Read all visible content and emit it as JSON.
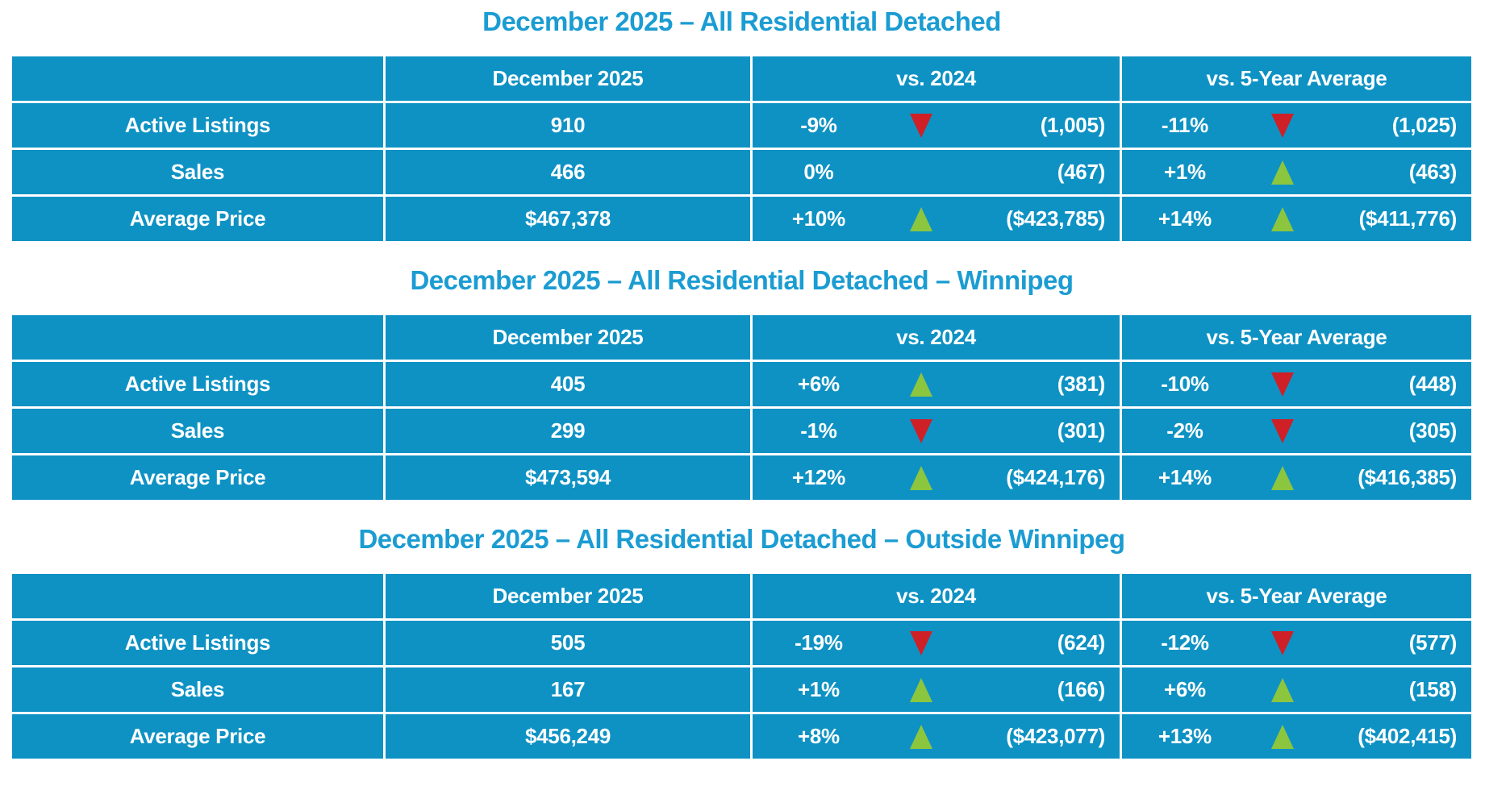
{
  "colors": {
    "table_cell_blue": "#0e92c4",
    "title_blue": "#1b9cd2",
    "up_arrow_green": "#8cc63e",
    "down_arrow_red": "#ce2026",
    "text_white": "#ffffff"
  },
  "sections": [
    {
      "title": "December 2025 – All Residential Detached",
      "headers": [
        "",
        "December 2025",
        "vs. 2024",
        "vs. 5-Year Average"
      ],
      "rows": [
        {
          "label": "Active Listings",
          "current": "910",
          "vs2024": {
            "pct": "-9%",
            "dir": "down",
            "value": "(1,005)"
          },
          "vs5yr": {
            "pct": "-11%",
            "dir": "down",
            "value": "(1,025)"
          }
        },
        {
          "label": "Sales",
          "current": "466",
          "vs2024": {
            "pct": "0%",
            "dir": "none",
            "value": "(467)"
          },
          "vs5yr": {
            "pct": "+1%",
            "dir": "up",
            "value": "(463)"
          }
        },
        {
          "label": "Average Price",
          "current": "$467,378",
          "vs2024": {
            "pct": "+10%",
            "dir": "up",
            "value": "($423,785)"
          },
          "vs5yr": {
            "pct": "+14%",
            "dir": "up",
            "value": "($411,776)"
          }
        }
      ]
    },
    {
      "title": "December 2025 – All Residential Detached – Winnipeg",
      "headers": [
        "",
        "December 2025",
        "vs. 2024",
        "vs. 5-Year Average"
      ],
      "rows": [
        {
          "label": "Active Listings",
          "current": "405",
          "vs2024": {
            "pct": "+6%",
            "dir": "up",
            "value": "(381)"
          },
          "vs5yr": {
            "pct": "-10%",
            "dir": "down",
            "value": "(448)"
          }
        },
        {
          "label": "Sales",
          "current": "299",
          "vs2024": {
            "pct": "-1%",
            "dir": "down",
            "value": "(301)"
          },
          "vs5yr": {
            "pct": "-2%",
            "dir": "down",
            "value": "(305)"
          }
        },
        {
          "label": "Average Price",
          "current": "$473,594",
          "vs2024": {
            "pct": "+12%",
            "dir": "up",
            "value": "($424,176)"
          },
          "vs5yr": {
            "pct": "+14%",
            "dir": "up",
            "value": "($416,385)"
          }
        }
      ]
    },
    {
      "title": "December 2025 – All Residential Detached – Outside Winnipeg",
      "headers": [
        "",
        "December 2025",
        "vs. 2024",
        "vs. 5-Year Average"
      ],
      "rows": [
        {
          "label": "Active Listings",
          "current": "505",
          "vs2024": {
            "pct": "-19%",
            "dir": "down",
            "value": "(624)"
          },
          "vs5yr": {
            "pct": "-12%",
            "dir": "down",
            "value": "(577)"
          }
        },
        {
          "label": "Sales",
          "current": "167",
          "vs2024": {
            "pct": "+1%",
            "dir": "up",
            "value": "(166)"
          },
          "vs5yr": {
            "pct": "+6%",
            "dir": "up",
            "value": "(158)"
          }
        },
        {
          "label": "Average Price",
          "current": "$456,249",
          "vs2024": {
            "pct": "+8%",
            "dir": "up",
            "value": "($423,077)"
          },
          "vs5yr": {
            "pct": "+13%",
            "dir": "up",
            "value": "($402,415)"
          }
        }
      ]
    }
  ]
}
